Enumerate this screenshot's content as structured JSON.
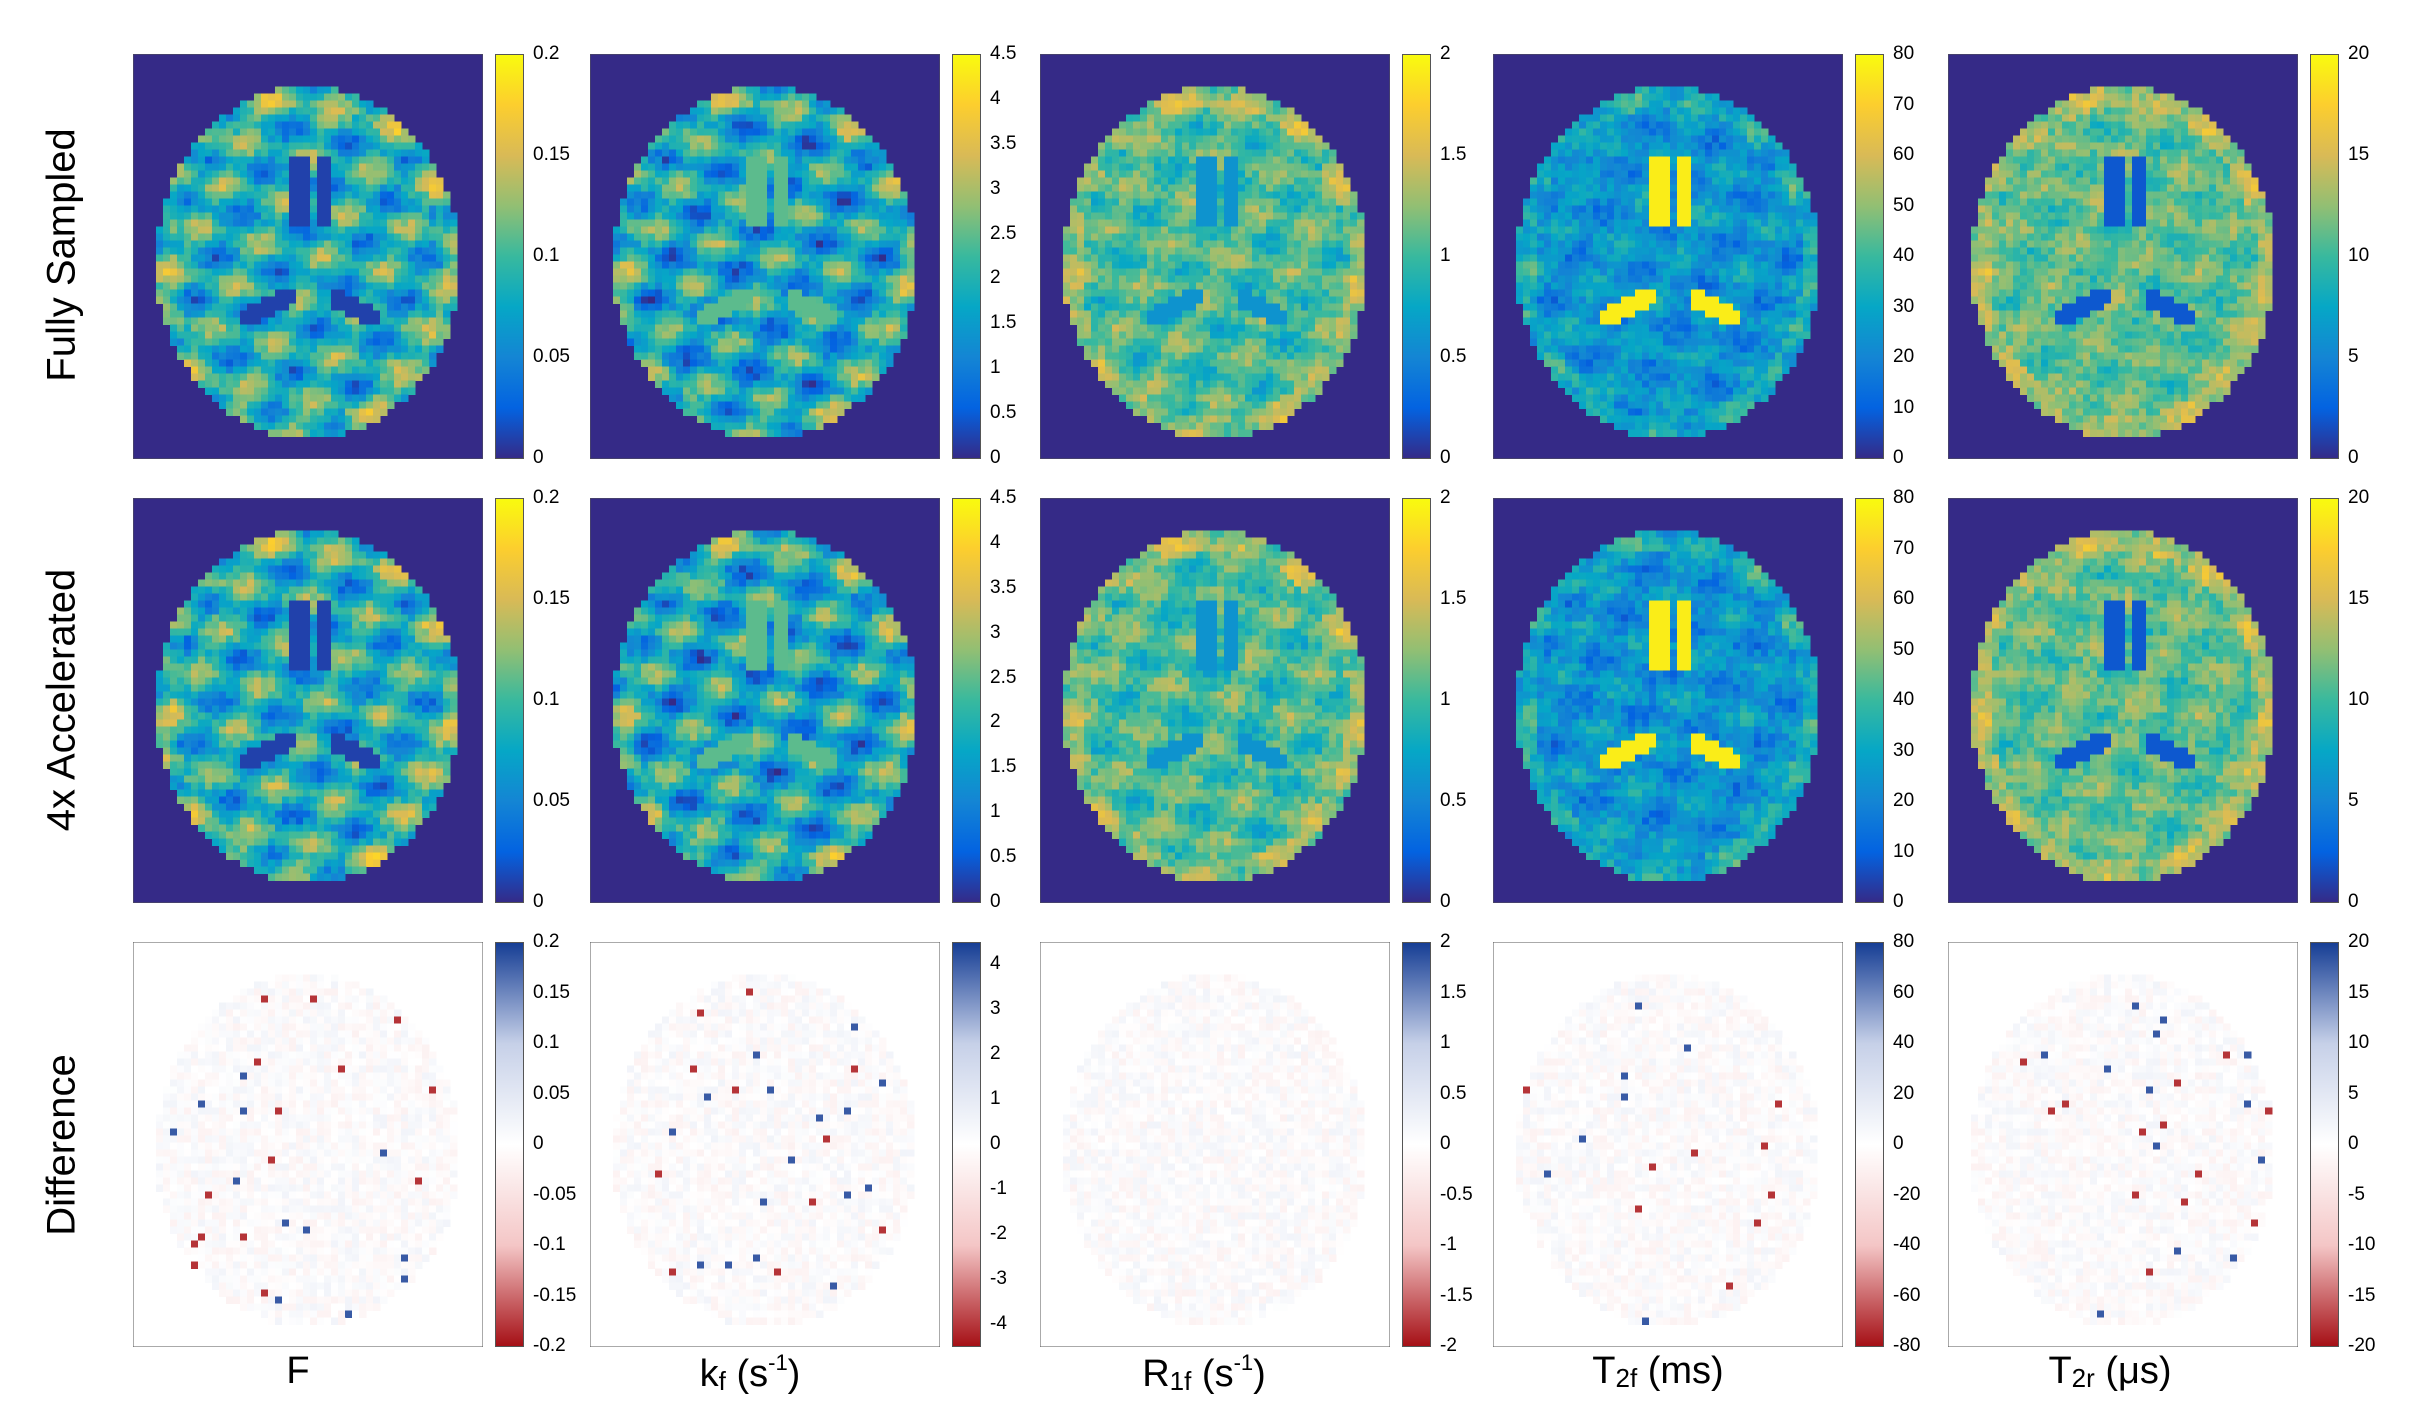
{
  "rows": [
    {
      "label": "Fully Sampled",
      "colormap": "parula"
    },
    {
      "label": "4x Accelerated",
      "colormap": "parula"
    },
    {
      "label": "Difference",
      "colormap": "diverging"
    }
  ],
  "columns": [
    {
      "id": "F",
      "label_main": "F",
      "label_sub": "",
      "label_after": "",
      "label_sup": "",
      "label_end": ""
    },
    {
      "id": "kf",
      "label_main": "k",
      "label_sub": "f",
      "label_after": " (s",
      "label_sup": "-1",
      "label_end": ")"
    },
    {
      "id": "R1f",
      "label_main": "R",
      "label_sub": "1f",
      "label_after": " (s",
      "label_sup": "-1",
      "label_end": ")"
    },
    {
      "id": "T2f",
      "label_main": "T",
      "label_sub": "2f",
      "label_after": " (ms)",
      "label_sup": "",
      "label_end": ""
    },
    {
      "id": "T2r",
      "label_main": "T",
      "label_sub": "2r",
      "label_after": " (μs)",
      "label_sup": "",
      "label_end": ""
    }
  ],
  "colorbar_ticks": {
    "top": [
      [
        "0",
        "0.05",
        "0.1",
        "0.15",
        "0.2"
      ],
      [
        "0",
        "0.5",
        "1",
        "1.5",
        "2",
        "2.5",
        "3",
        "3.5",
        "4",
        "4.5"
      ],
      [
        "0",
        "0.5",
        "1",
        "1.5",
        "2"
      ],
      [
        "0",
        "10",
        "20",
        "30",
        "40",
        "50",
        "60",
        "70",
        "80"
      ],
      [
        "0",
        "5",
        "10",
        "15",
        "20"
      ]
    ],
    "diff": [
      [
        "-0.2",
        "-0.15",
        "-0.1",
        "-0.05",
        "0",
        "0.05",
        "0.1",
        "0.15",
        "0.2"
      ],
      [
        "-4",
        "-3",
        "-2",
        "-1",
        "0",
        "1",
        "2",
        "3",
        "4"
      ],
      [
        "-2",
        "-1.5",
        "-1",
        "-0.5",
        "0",
        "0.5",
        "1",
        "1.5",
        "2"
      ],
      [
        "-80",
        "-60",
        "-40",
        "-20",
        "0",
        "20",
        "40",
        "60",
        "80"
      ],
      [
        "-20",
        "-15",
        "-10",
        "-5",
        "0",
        "5",
        "10",
        "15",
        "20"
      ]
    ]
  },
  "colorbar_ranges": {
    "top": [
      [
        0,
        0.2
      ],
      [
        0,
        4.5
      ],
      [
        0,
        2
      ],
      [
        0,
        80
      ],
      [
        0,
        20
      ]
    ],
    "diff": [
      [
        -0.2,
        0.2
      ],
      [
        -4.5,
        4.5
      ],
      [
        -2,
        2
      ],
      [
        -80,
        80
      ],
      [
        -20,
        20
      ]
    ]
  },
  "colors": {
    "background_map": "#352a87",
    "parula_stops": [
      "#352a87",
      "#0363e1",
      "#1485d4",
      "#06a7c6",
      "#38b99e",
      "#92bf73",
      "#d9ba56",
      "#fcce2e",
      "#f9fb0e"
    ],
    "diverging_stops": [
      "#a50f15",
      "#f4c6c6",
      "#ffffff",
      "#c6d0e8",
      "#153d94"
    ]
  }
}
